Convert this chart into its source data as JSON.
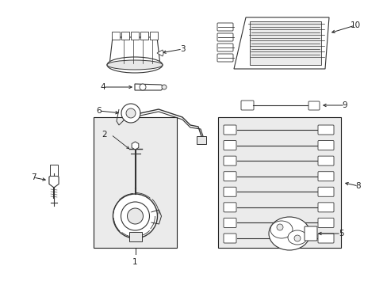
{
  "bg_color": "#ffffff",
  "fig_width": 4.89,
  "fig_height": 3.6,
  "dpi": 100,
  "line_color": "#222222",
  "part_color": "#333333",
  "fill_color": "#e8e8e8",
  "box_fill": "#ebebeb",
  "label_font": 7.5
}
